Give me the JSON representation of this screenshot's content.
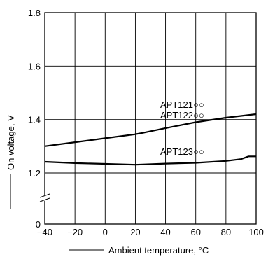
{
  "chart_data": {
    "type": "line",
    "xlabel": "Ambient temperature, °C",
    "ylabel": "On voltage, V",
    "xlim": [
      -40,
      100
    ],
    "ylim": [
      0,
      1.8
    ],
    "x_ticks": [
      -40,
      -20,
      0,
      20,
      40,
      60,
      80,
      100
    ],
    "x_tick_labels": [
      "−40",
      "−20",
      "0",
      "20",
      "40",
      "60",
      "80",
      "100"
    ],
    "y_ticks": [
      0,
      1.2,
      1.4,
      1.6,
      1.8
    ],
    "y_tick_labels": [
      "0",
      "1.2",
      "1.4",
      "1.6",
      "1.8"
    ],
    "grid": true,
    "series": [
      {
        "name": "APT121○○ / APT122○○",
        "label_lines": [
          "APT121○○",
          "APT122○○"
        ],
        "x": [
          -40,
          -20,
          0,
          20,
          25,
          40,
          60,
          80,
          100
        ],
        "y": [
          1.3,
          1.315,
          1.33,
          1.345,
          1.35,
          1.368,
          1.39,
          1.407,
          1.42
        ]
      },
      {
        "name": "APT123○○",
        "label_lines": [
          "APT123○○"
        ],
        "x": [
          -40,
          -20,
          0,
          20,
          25,
          40,
          60,
          80,
          90,
          95,
          100
        ],
        "y": [
          1.242,
          1.237,
          1.234,
          1.231,
          1.232,
          1.235,
          1.238,
          1.245,
          1.252,
          1.262,
          1.262
        ]
      }
    ]
  }
}
